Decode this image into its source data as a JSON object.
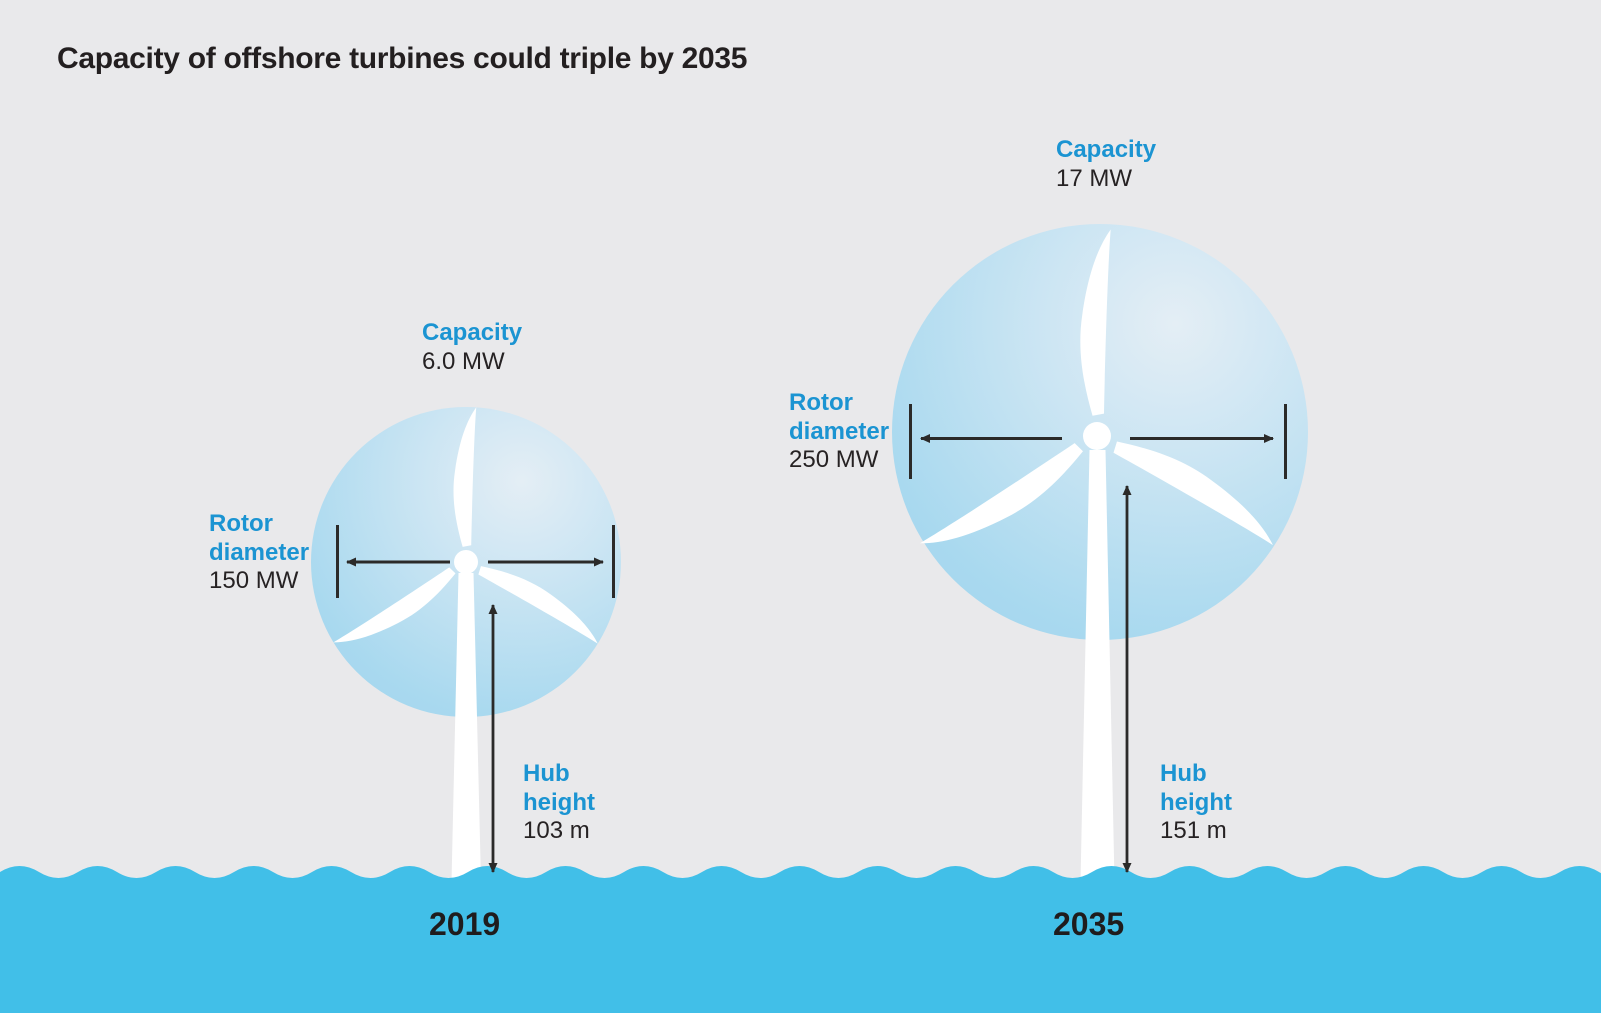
{
  "title": "Capacity of offshore turbines could triple by 2035",
  "turbines": [
    {
      "year": "2019",
      "capacity": {
        "label": "Capacity",
        "value": "6.0 MW"
      },
      "rotor": {
        "label_line1": "Rotor",
        "label_line2": "diameter",
        "value": "150 MW"
      },
      "hub": {
        "label_line1": "Hub",
        "label_line2": "height",
        "value": "103 m"
      }
    },
    {
      "year": "2035",
      "capacity": {
        "label": "Capacity",
        "value": "17 MW"
      },
      "rotor": {
        "label_line1": "Rotor",
        "label_line2": "diameter",
        "value": "250 MW"
      },
      "hub": {
        "label_line1": "Hub",
        "label_line2": "height",
        "value": "151 m"
      }
    }
  ],
  "colors": {
    "accent_blue": "#1B94D2",
    "water": "#41BFE8",
    "background": "#E9E9EB",
    "ink": "#231F20",
    "rotor_sweep_light": "#E4EEF5",
    "rotor_sweep_dark": "#A5D7EF"
  },
  "chart_data": {
    "type": "bar",
    "title": "Capacity of offshore turbines could triple by 2035",
    "categories": [
      "2019",
      "2035"
    ],
    "series": [
      {
        "name": "Capacity",
        "unit_as_shown": "MW",
        "values": [
          6.0,
          17
        ]
      },
      {
        "name": "Rotor diameter",
        "unit_as_shown": "MW",
        "values": [
          150,
          250
        ]
      },
      {
        "name": "Hub height",
        "unit_as_shown": "m",
        "values": [
          103,
          151
        ]
      }
    ],
    "legend_position": "none",
    "grid": false
  }
}
